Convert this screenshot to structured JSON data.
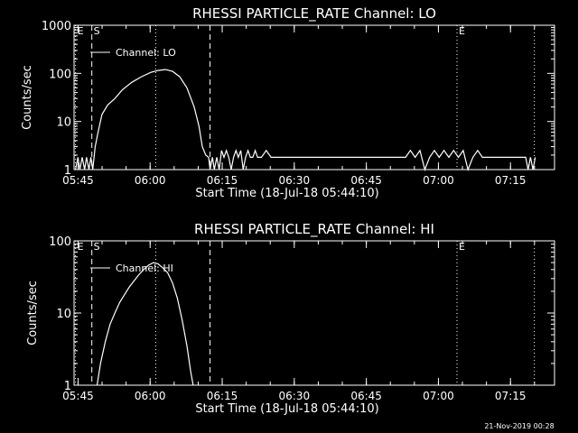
{
  "footer": {
    "timestamp": "21-Nov-2019 00:28"
  },
  "chart_data": [
    {
      "type": "line",
      "title": "RHESSI PARTICLE_RATE Channel: LO",
      "xlabel": "Start Time (18-Jul-18 05:44:10)",
      "ylabel": "Counts/sec",
      "yscale": "log",
      "ylim": [
        1,
        1000
      ],
      "xlim_minutes": [
        0,
        100
      ],
      "x_tick_labels": [
        "05:45",
        "06:00",
        "06:15",
        "06:30",
        "06:45",
        "07:00",
        "07:15"
      ],
      "y_tick_labels": [
        "1",
        "10",
        "100",
        "1000"
      ],
      "legend": {
        "label": "Channel: LO",
        "position": "top-left"
      },
      "markers": [
        {
          "label": "E",
          "x_minutes": 0.3,
          "style": "dotted"
        },
        {
          "label": "S",
          "x_minutes": 3.7,
          "style": "dashed"
        },
        {
          "label": "",
          "x_minutes": 17.0,
          "style": "dotted"
        },
        {
          "label": "",
          "x_minutes": 28.3,
          "style": "dashed"
        },
        {
          "label": "E",
          "x_minutes": 79.7,
          "style": "dotted"
        },
        {
          "label": "",
          "x_minutes": 95.8,
          "style": "dotted"
        }
      ],
      "series": [
        {
          "name": "Channel: LO",
          "x_minutes": [
            0.3,
            0.8,
            1.2,
            1.7,
            2.2,
            2.6,
            3.1,
            3.5,
            3.9,
            4.4,
            5.0,
            5.8,
            7.0,
            8.5,
            10.0,
            12.0,
            14.0,
            16.0,
            17.5,
            19.0,
            20.5,
            22.0,
            23.5,
            25.0,
            26.0,
            26.7,
            27.4,
            28.0,
            28.3,
            28.8,
            29.2,
            29.7,
            30.2,
            30.7,
            31.2,
            31.7,
            32.2,
            32.7,
            33.2,
            33.7,
            34.2,
            34.7,
            35.2,
            35.7,
            36.2,
            36.7,
            37.2,
            37.7,
            38.2,
            39.0,
            40.0,
            41.0,
            42.0,
            43.0,
            44.0,
            45.0,
            46.0,
            47.0,
            48.0,
            49.0,
            50.0,
            51.0,
            52.0,
            53.0,
            54.0,
            55.0,
            56.0,
            57.0,
            58.0,
            59.0,
            60.0,
            61.0,
            62.0,
            63.0,
            64.0,
            65.0,
            66.0,
            67.0,
            68.0,
            69.0,
            70.0,
            71.0,
            72.0,
            73.0,
            74.0,
            75.0,
            76.0,
            77.0,
            78.0,
            79.0,
            80.0,
            81.0,
            82.0,
            83.0,
            84.0,
            85.0,
            86.0,
            87.0,
            88.0,
            89.0,
            90.0,
            91.0,
            92.0,
            93.0,
            94.0,
            94.5,
            95.0,
            95.5,
            96.0
          ],
          "y": [
            1,
            1.8,
            1,
            1.8,
            1,
            1.8,
            1,
            1.8,
            1,
            3,
            6,
            14,
            22,
            30,
            45,
            65,
            85,
            105,
            115,
            120,
            110,
            85,
            50,
            20,
            8,
            3,
            2,
            1.8,
            1,
            1.8,
            1,
            1.8,
            1,
            2.5,
            1.8,
            2.5,
            1.8,
            1,
            1.8,
            2.5,
            1.8,
            2.5,
            1,
            1.8,
            2.5,
            1.8,
            1.8,
            2.5,
            1.8,
            1.8,
            2.5,
            1.8,
            1.8,
            1.8,
            1.8,
            1.8,
            1.8,
            1.8,
            1.8,
            1.8,
            1.8,
            1.8,
            1.8,
            1.8,
            1.8,
            1.8,
            1.8,
            1.8,
            1.8,
            1.8,
            1.8,
            1.8,
            1.8,
            1.8,
            1.8,
            1.8,
            1.8,
            1.8,
            1.8,
            1.8,
            2.5,
            1.8,
            2.5,
            1,
            1.8,
            2.5,
            1.8,
            2.5,
            1.8,
            2.5,
            1.8,
            2.5,
            1,
            1.8,
            2.5,
            1.8,
            1.8,
            1.8,
            1.8,
            1.8,
            1.8,
            1.8,
            1.8,
            1.8,
            1.8,
            1,
            1.8,
            1,
            1.8
          ]
        }
      ]
    },
    {
      "type": "line",
      "title": "RHESSI PARTICLE_RATE Channel: HI",
      "xlabel": "Start Time (18-Jul-18 05:44:10)",
      "ylabel": "Counts/sec",
      "yscale": "log",
      "ylim": [
        1,
        100
      ],
      "xlim_minutes": [
        0,
        100
      ],
      "x_tick_labels": [
        "05:45",
        "06:00",
        "06:15",
        "06:30",
        "06:45",
        "07:00",
        "07:15"
      ],
      "y_tick_labels": [
        "1",
        "10",
        "100"
      ],
      "legend": {
        "label": "Channel: HI",
        "position": "top-left"
      },
      "markers": [
        {
          "label": "E",
          "x_minutes": 0.3,
          "style": "dotted"
        },
        {
          "label": "S",
          "x_minutes": 3.7,
          "style": "dashed"
        },
        {
          "label": "",
          "x_minutes": 17.0,
          "style": "dotted"
        },
        {
          "label": "",
          "x_minutes": 28.3,
          "style": "dashed"
        },
        {
          "label": "E",
          "x_minutes": 79.7,
          "style": "dotted"
        },
        {
          "label": "",
          "x_minutes": 95.8,
          "style": "dotted"
        }
      ],
      "series": [
        {
          "name": "Channel: HI",
          "x_minutes": [
            4.8,
            5.5,
            6.5,
            7.5,
            8.5,
            9.5,
            10.5,
            11.5,
            12.5,
            13.5,
            14.5,
            15.5,
            16.5,
            17.5,
            18.5,
            19.5,
            20.5,
            21.5,
            22.5,
            23.5,
            24.3,
            24.8
          ],
          "y": [
            1,
            2,
            4,
            7,
            10,
            14,
            18,
            23,
            28,
            34,
            40,
            46,
            50,
            48,
            42,
            36,
            26,
            16,
            8,
            3.5,
            1.5,
            1
          ]
        }
      ]
    }
  ]
}
